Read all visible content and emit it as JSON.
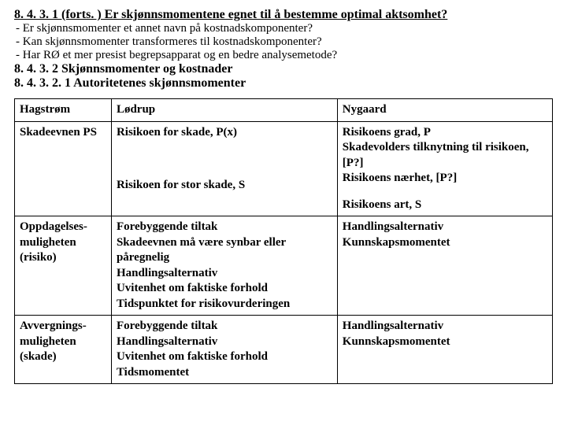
{
  "heading_main": "8. 4. 3. 1 (forts. ) Er skjønnsmomentene egnet til å bestemme optimal aktsomhet?",
  "bullets": [
    "- Er skjønnsmomenter et annet navn på kostnadskomponenter?",
    "- Kan skjønnsmomenter transformeres til kostnadskomponenter?",
    "- Har RØ et mer presist begrepsapparat og en bedre analysemetode?"
  ],
  "subhead1": "8. 4. 3. 2  Skjønnsmomenter og kostnader",
  "subhead2": "8. 4. 3. 2. 1  Autoritetenes skjønnsmomenter",
  "table": {
    "header": [
      "Hagstrøm",
      "Lødrup",
      "Nygaard"
    ],
    "rows": [
      {
        "c1": "Skadeevnen PS",
        "c2a": "Risikoen for skade, P(x)",
        "c2b": "Risikoen for stor skade, S",
        "c3a": "Risikoens grad, P\nSkadevolders tilknytning til risikoen, [P?]\nRisikoens nærhet, [P?]",
        "c3b": "Risikoens art, S"
      },
      {
        "c1": "Oppdagelses-muligheten (risiko)",
        "c2": "Forebyggende tiltak\nSkadeevnen må være synbar eller påregnelig\nHandlingsalternativ\nUvitenhet om faktiske forhold\nTidspunktet for risikovurderingen",
        "c3": "Handlingsalternativ\nKunnskapsmomentet"
      },
      {
        "c1": "Avvergnings-muligheten (skade)",
        "c2": "Forebyggende tiltak\nHandlingsalternativ\nUvitenhet om faktiske forhold\nTidsmomentet",
        "c3": "Handlingsalternativ\nKunnskapsmomentet"
      }
    ]
  }
}
